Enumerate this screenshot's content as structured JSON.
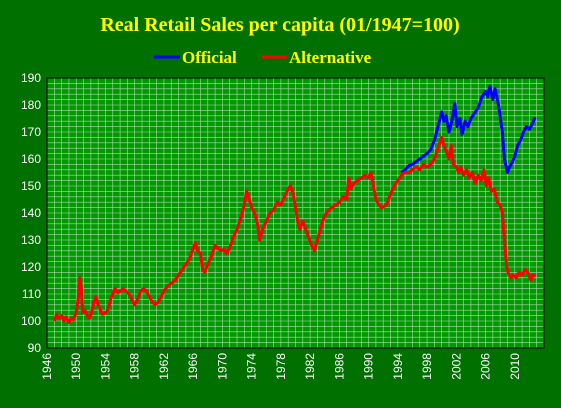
{
  "chart_data": {
    "type": "line",
    "title": "Real Retail Sales per capita (01/1947=100)",
    "xlabel": "",
    "ylabel": "",
    "xlim": [
      1946,
      2014
    ],
    "ylim": [
      90,
      190
    ],
    "x_ticks": [
      1946,
      1950,
      1954,
      1958,
      1962,
      1966,
      1970,
      1974,
      1978,
      1982,
      1986,
      1990,
      1994,
      1998,
      2002,
      2006,
      2010
    ],
    "y_ticks": [
      90,
      100,
      110,
      120,
      130,
      140,
      150,
      160,
      170,
      180,
      190
    ],
    "grid": true,
    "legend_position": "top",
    "colors": {
      "background": "#007000",
      "plot_area": "#009900",
      "grid": "#b0d8b0",
      "title": "#ffff00",
      "ticks": "#ffffff"
    },
    "series": [
      {
        "name": "Official",
        "color": "#0000ff",
        "points": [
          [
            1994.5,
            155.0
          ],
          [
            1995.0,
            156.0
          ],
          [
            1995.5,
            157.5
          ],
          [
            1996.0,
            158.0
          ],
          [
            1996.5,
            159.0
          ],
          [
            1997.0,
            160.0
          ],
          [
            1997.5,
            161.0
          ],
          [
            1998.0,
            162.0
          ],
          [
            1998.5,
            163.5
          ],
          [
            1999.0,
            167.0
          ],
          [
            1999.5,
            172.0
          ],
          [
            2000.0,
            177.5
          ],
          [
            2000.3,
            174.0
          ],
          [
            2000.6,
            176.0
          ],
          [
            2001.0,
            170.0
          ],
          [
            2001.4,
            174.0
          ],
          [
            2001.8,
            180.5
          ],
          [
            2002.1,
            172.0
          ],
          [
            2002.5,
            175.0
          ],
          [
            2002.8,
            169.0
          ],
          [
            2003.2,
            174.0
          ],
          [
            2003.6,
            172.0
          ],
          [
            2004.0,
            175.0
          ],
          [
            2004.5,
            177.0
          ],
          [
            2005.0,
            179.0
          ],
          [
            2005.5,
            183.0
          ],
          [
            2006.0,
            185.0
          ],
          [
            2006.3,
            183.0
          ],
          [
            2006.6,
            187.0
          ],
          [
            2007.0,
            182.0
          ],
          [
            2007.3,
            186.0
          ],
          [
            2007.7,
            181.0
          ],
          [
            2008.0,
            176.0
          ],
          [
            2008.3,
            170.0
          ],
          [
            2008.6,
            160.0
          ],
          [
            2009.0,
            155.0
          ],
          [
            2009.3,
            157.0
          ],
          [
            2009.7,
            159.0
          ],
          [
            2010.0,
            161.0
          ],
          [
            2010.4,
            165.0
          ],
          [
            2010.8,
            167.0
          ],
          [
            2011.2,
            170.0
          ],
          [
            2011.6,
            172.0
          ],
          [
            2012.0,
            171.0
          ],
          [
            2012.4,
            173.0
          ],
          [
            2012.8,
            175.5
          ]
        ]
      },
      {
        "name": "Alternative",
        "color": "#ff0000",
        "points": [
          [
            1947.0,
            100.0
          ],
          [
            1947.3,
            102.5
          ],
          [
            1947.6,
            101.0
          ],
          [
            1948.0,
            102.0
          ],
          [
            1948.3,
            100.0
          ],
          [
            1948.6,
            101.5
          ],
          [
            1949.0,
            99.5
          ],
          [
            1949.3,
            101.0
          ],
          [
            1949.6,
            100.5
          ],
          [
            1950.0,
            103.0
          ],
          [
            1950.3,
            109.0
          ],
          [
            1950.5,
            116.0
          ],
          [
            1950.7,
            112.0
          ],
          [
            1950.9,
            103.0
          ],
          [
            1951.2,
            104.0
          ],
          [
            1951.5,
            102.0
          ],
          [
            1951.8,
            101.0
          ],
          [
            1952.1,
            103.0
          ],
          [
            1952.4,
            107.0
          ],
          [
            1952.7,
            109.0
          ],
          [
            1953.0,
            106.0
          ],
          [
            1953.3,
            104.0
          ],
          [
            1953.6,
            102.5
          ],
          [
            1954.0,
            103.0
          ],
          [
            1954.3,
            104.0
          ],
          [
            1954.7,
            108.0
          ],
          [
            1955.0,
            110.0
          ],
          [
            1955.3,
            112.0
          ],
          [
            1955.7,
            110.5
          ],
          [
            1956.0,
            111.0
          ],
          [
            1956.4,
            112.0
          ],
          [
            1956.8,
            111.0
          ],
          [
            1957.2,
            110.0
          ],
          [
            1957.6,
            108.0
          ],
          [
            1958.0,
            106.0
          ],
          [
            1958.4,
            108.0
          ],
          [
            1958.8,
            111.0
          ],
          [
            1959.2,
            112.0
          ],
          [
            1959.6,
            111.0
          ],
          [
            1960.0,
            109.0
          ],
          [
            1960.4,
            107.0
          ],
          [
            1960.8,
            106.0
          ],
          [
            1961.2,
            107.0
          ],
          [
            1961.6,
            109.0
          ],
          [
            1962.0,
            111.0
          ],
          [
            1962.5,
            113.0
          ],
          [
            1963.0,
            114.0
          ],
          [
            1963.5,
            115.0
          ],
          [
            1964.0,
            117.0
          ],
          [
            1964.5,
            119.0
          ],
          [
            1965.0,
            121.0
          ],
          [
            1965.5,
            123.0
          ],
          [
            1966.0,
            127.0
          ],
          [
            1966.3,
            129.0
          ],
          [
            1966.6,
            126.0
          ],
          [
            1967.0,
            125.0
          ],
          [
            1967.3,
            119.0
          ],
          [
            1967.6,
            118.0
          ],
          [
            1968.0,
            121.0
          ],
          [
            1968.5,
            124.0
          ],
          [
            1969.0,
            128.0
          ],
          [
            1969.4,
            127.0
          ],
          [
            1969.8,
            126.0
          ],
          [
            1970.2,
            126.5
          ],
          [
            1970.6,
            125.0
          ],
          [
            1971.0,
            127.0
          ],
          [
            1971.5,
            131.0
          ],
          [
            1972.0,
            134.0
          ],
          [
            1972.5,
            138.0
          ],
          [
            1973.0,
            143.0
          ],
          [
            1973.3,
            148.0
          ],
          [
            1973.6,
            146.0
          ],
          [
            1974.0,
            142.0
          ],
          [
            1974.4,
            140.0
          ],
          [
            1974.8,
            136.0
          ],
          [
            1975.1,
            130.0
          ],
          [
            1975.5,
            134.0
          ],
          [
            1976.0,
            137.0
          ],
          [
            1976.5,
            140.0
          ],
          [
            1977.0,
            141.0
          ],
          [
            1977.5,
            144.0
          ],
          [
            1978.0,
            143.0
          ],
          [
            1978.5,
            146.0
          ],
          [
            1979.0,
            149.0
          ],
          [
            1979.3,
            150.0
          ],
          [
            1979.7,
            147.0
          ],
          [
            1980.0,
            142.0
          ],
          [
            1980.3,
            137.0
          ],
          [
            1980.6,
            134.0
          ],
          [
            1981.0,
            137.0
          ],
          [
            1981.4,
            134.0
          ],
          [
            1981.8,
            131.0
          ],
          [
            1982.2,
            128.0
          ],
          [
            1982.6,
            126.0
          ],
          [
            1983.0,
            130.0
          ],
          [
            1983.5,
            135.0
          ],
          [
            1984.0,
            139.0
          ],
          [
            1984.5,
            141.0
          ],
          [
            1985.0,
            142.0
          ],
          [
            1985.5,
            143.0
          ],
          [
            1986.0,
            144.0
          ],
          [
            1986.5,
            146.0
          ],
          [
            1987.0,
            145.0
          ],
          [
            1987.3,
            153.0
          ],
          [
            1987.6,
            149.0
          ],
          [
            1988.0,
            151.0
          ],
          [
            1988.5,
            152.0
          ],
          [
            1989.0,
            153.0
          ],
          [
            1989.5,
            154.0
          ],
          [
            1990.0,
            153.0
          ],
          [
            1990.3,
            155.0
          ],
          [
            1990.6,
            151.0
          ],
          [
            1991.0,
            145.0
          ],
          [
            1991.4,
            143.0
          ],
          [
            1991.8,
            142.0
          ],
          [
            1992.2,
            142.5
          ],
          [
            1992.6,
            144.0
          ],
          [
            1993.0,
            147.0
          ],
          [
            1993.5,
            150.0
          ],
          [
            1994.0,
            152.0
          ],
          [
            1994.5,
            154.0
          ],
          [
            1995.0,
            155.0
          ],
          [
            1995.5,
            155.0
          ],
          [
            1996.0,
            156.0
          ],
          [
            1996.5,
            157.0
          ],
          [
            1997.0,
            156.0
          ],
          [
            1997.5,
            158.0
          ],
          [
            1998.0,
            157.0
          ],
          [
            1998.5,
            158.0
          ],
          [
            1999.0,
            160.0
          ],
          [
            1999.5,
            164.0
          ],
          [
            2000.0,
            168.0
          ],
          [
            2000.3,
            165.0
          ],
          [
            2000.6,
            163.0
          ],
          [
            2001.0,
            160.0
          ],
          [
            2001.3,
            165.0
          ],
          [
            2001.6,
            158.0
          ],
          [
            2002.0,
            157.0
          ],
          [
            2002.3,
            155.0
          ],
          [
            2002.6,
            157.0
          ],
          [
            2003.0,
            154.0
          ],
          [
            2003.4,
            156.0
          ],
          [
            2003.8,
            153.0
          ],
          [
            2004.2,
            155.0
          ],
          [
            2004.6,
            151.0
          ],
          [
            2005.0,
            154.0
          ],
          [
            2005.4,
            152.0
          ],
          [
            2005.8,
            156.0
          ],
          [
            2006.1,
            150.0
          ],
          [
            2006.4,
            153.0
          ],
          [
            2006.8,
            148.0
          ],
          [
            2007.2,
            149.0
          ],
          [
            2007.6,
            144.0
          ],
          [
            2008.0,
            143.0
          ],
          [
            2008.3,
            140.0
          ],
          [
            2008.6,
            130.0
          ],
          [
            2008.9,
            120.0
          ],
          [
            2009.2,
            117.0
          ],
          [
            2009.5,
            116.0
          ],
          [
            2009.8,
            117.0
          ],
          [
            2010.2,
            116.0
          ],
          [
            2010.6,
            118.0
          ],
          [
            2011.0,
            117.0
          ],
          [
            2011.4,
            119.0
          ],
          [
            2011.8,
            118.0
          ],
          [
            2012.2,
            115.0
          ],
          [
            2012.5,
            117.0
          ],
          [
            2012.8,
            116.5
          ]
        ]
      }
    ]
  }
}
